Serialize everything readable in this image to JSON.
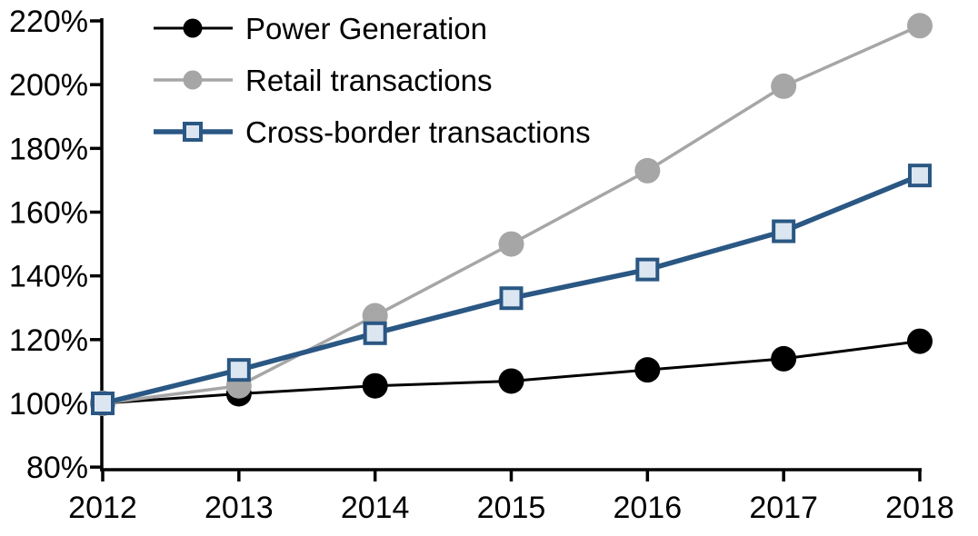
{
  "chart_data": {
    "type": "line",
    "title": "",
    "categories": [
      "2012",
      "2013",
      "2014",
      "2015",
      "2016",
      "2017",
      "2018"
    ],
    "series": [
      {
        "name": "Power Generation",
        "color": "#000000",
        "marker": "circle",
        "marker_fill": "#000000",
        "line_width": 3,
        "values": [
          100,
          103,
          105.5,
          107,
          110.5,
          114,
          119.5
        ]
      },
      {
        "name": "Retail transactions",
        "color": "#a6a6a6",
        "marker": "circle",
        "marker_fill": "#a6a6a6",
        "line_width": 3.5,
        "values": [
          100,
          105.5,
          127.5,
          150,
          173,
          199.5,
          218.5
        ]
      },
      {
        "name": "Cross-border transactions",
        "color": "#2a5783",
        "marker": "square",
        "marker_fill": "#dce6f1",
        "line_width": 5.5,
        "values": [
          100,
          110.5,
          122,
          133,
          142,
          154,
          171.5
        ]
      }
    ],
    "y_axis": {
      "min": 80,
      "max": 220,
      "step": 20,
      "suffix": "%",
      "tick_labels": [
        "80%",
        "100%",
        "120%",
        "140%",
        "160%",
        "180%",
        "200%",
        "220%"
      ]
    },
    "x_axis": {
      "tick_labels": [
        "2012",
        "2013",
        "2014",
        "2015",
        "2016",
        "2017",
        "2018"
      ]
    },
    "legend_position": "top-left",
    "grid": false,
    "axis_color": "#000000",
    "background": "#ffffff"
  }
}
